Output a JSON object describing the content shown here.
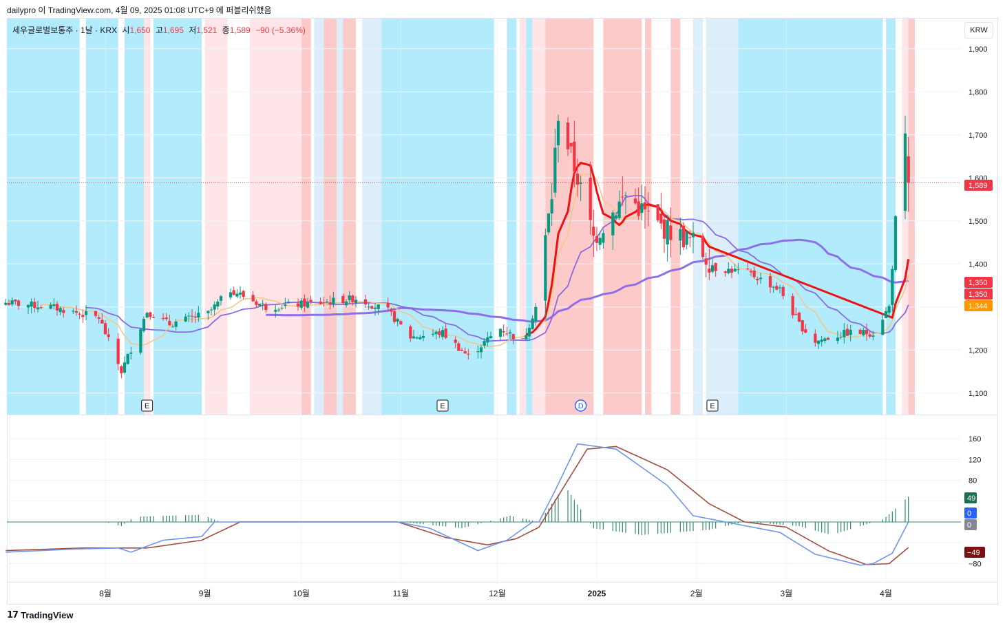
{
  "header": {
    "text": "dailypro 이 TradingView.com, 4월 09, 2025 01:08 UTC+9 에 퍼블리쉬했음"
  },
  "legend": {
    "symbol": "세우글로벌보통주 · 1날 · KRX",
    "open_label": "시",
    "open": "1,650",
    "high_label": "고",
    "high": "1,695",
    "low_label": "저",
    "low": "1,521",
    "close_label": "종",
    "close": "1,589",
    "change": "−90 (−5.36%)"
  },
  "currency_button": "KRW",
  "footer": {
    "brand": "TradingView"
  },
  "colors": {
    "up": "#089981",
    "down": "#f23645",
    "bg_cyan": "#b2ebfc",
    "bg_lightblue": "#dbeefa",
    "bg_red": "#fdcaca",
    "bg_pink": "#ffe5e8",
    "ma_purple_thick": "#8e6fe8",
    "ma_purple_thin": "#8a6ae0",
    "ma_red": "#ee1111",
    "ma_orange": "#f2c88a",
    "macd_line": "#6f95ec",
    "signal_line": "#a14e40",
    "hist": "#2f8a6f"
  },
  "chart_data": [
    {
      "type": "candlestick",
      "title": "세우글로벌보통주 · 1날 · KRX",
      "ylim": [
        1050,
        1970
      ],
      "y_ticks": [
        1100,
        1200,
        1300,
        1400,
        1500,
        1600,
        1700,
        1800,
        1900
      ],
      "y_tick_labels": [
        "1,100",
        "1,200",
        "1,300",
        "1,400",
        "1,500",
        "1,600",
        "1,700",
        "1,800",
        "1,900"
      ],
      "x_labels": [
        "8월",
        "9월",
        "10월",
        "11월",
        "12월",
        "2025",
        "2월",
        "3월",
        "4월"
      ],
      "price_tags": [
        {
          "value": 1589,
          "label": "1,589",
          "color": "#f23645"
        },
        {
          "value": 1350,
          "label": "1,350",
          "color": "#f23645"
        },
        {
          "value": 1350,
          "label": "1,350",
          "color": "#f23645"
        },
        {
          "value": 1344,
          "label": "1,344",
          "color": "#ff9800"
        }
      ],
      "event_markers": [
        {
          "label": "E",
          "x_date": "2024-08-14"
        },
        {
          "label": "E",
          "x_date": "2024-11-14"
        },
        {
          "label": "D",
          "x_date": "2024-12-27"
        },
        {
          "label": "E",
          "x_date": "2025-02-06"
        }
      ],
      "anchor_points": [
        [
          "2024-07-01",
          1310
        ],
        [
          "2024-07-15",
          1300
        ],
        [
          "2024-07-30",
          1275
        ],
        [
          "2024-08-06",
          1150
        ],
        [
          "2024-08-14",
          1290
        ],
        [
          "2024-08-21",
          1260
        ],
        [
          "2024-09-02",
          1285
        ],
        [
          "2024-09-09",
          1340
        ],
        [
          "2024-09-20",
          1300
        ],
        [
          "2024-10-07",
          1310
        ],
        [
          "2024-10-18",
          1320
        ],
        [
          "2024-10-28",
          1290
        ],
        [
          "2024-11-04",
          1230
        ],
        [
          "2024-11-14",
          1240
        ],
        [
          "2024-11-22",
          1185
        ],
        [
          "2024-12-02",
          1250
        ],
        [
          "2024-12-09",
          1220
        ],
        [
          "2024-12-13",
          1300
        ],
        [
          "2024-12-18",
          1560
        ],
        [
          "2024-12-20",
          1750
        ],
        [
          "2024-12-26",
          1600
        ],
        [
          "2024-12-31",
          1460
        ],
        [
          "2025-01-10",
          1560
        ],
        [
          "2025-01-20",
          1490
        ],
        [
          "2025-01-31",
          1450
        ],
        [
          "2025-02-07",
          1390
        ],
        [
          "2025-02-17",
          1380
        ],
        [
          "2025-02-27",
          1340
        ],
        [
          "2025-03-05",
          1260
        ],
        [
          "2025-03-10",
          1220
        ],
        [
          "2025-03-20",
          1240
        ],
        [
          "2025-03-28",
          1240
        ],
        [
          "2025-04-02",
          1300
        ],
        [
          "2025-04-04",
          1490
        ],
        [
          "2025-04-07",
          1680
        ],
        [
          "2025-04-08",
          1589
        ]
      ],
      "last_bar": {
        "date": "2025-04-08",
        "open": 1650,
        "high": 1695,
        "low": 1521,
        "close": 1589
      }
    },
    {
      "type": "macd",
      "ylim": [
        -115,
        205
      ],
      "y_ticks": [
        160,
        120,
        80,
        -80
      ],
      "y_tick_labels": [
        "160",
        "120",
        "80",
        "−80"
      ],
      "value_tags": [
        {
          "value": 49,
          "label": "49",
          "color": "#1e6d55"
        },
        {
          "value": 0,
          "label": "0",
          "color": "#2962ff"
        },
        {
          "value": 0,
          "label": "0",
          "color": "#868993"
        },
        {
          "value": -49,
          "label": "−49",
          "color": "#7a1010"
        }
      ],
      "macd_points": [
        [
          "2024-07-01",
          -58
        ],
        [
          "2024-07-22",
          -52
        ],
        [
          "2024-08-05",
          -50
        ],
        [
          "2024-08-09",
          -58
        ],
        [
          "2024-08-19",
          -35
        ],
        [
          "2024-08-31",
          -28
        ],
        [
          "2024-09-04",
          0
        ],
        [
          "2024-10-31",
          0
        ],
        [
          "2024-11-10",
          -12
        ],
        [
          "2024-11-25",
          -55
        ],
        [
          "2024-12-04",
          -35
        ],
        [
          "2024-12-12",
          0
        ],
        [
          "2024-12-14",
          0
        ],
        [
          "2024-12-19",
          60
        ],
        [
          "2024-12-26",
          150
        ],
        [
          "2025-01-07",
          140
        ],
        [
          "2025-01-23",
          70
        ],
        [
          "2025-01-31",
          12
        ],
        [
          "2025-02-10",
          0
        ],
        [
          "2025-02-27",
          -20
        ],
        [
          "2025-03-10",
          -62
        ],
        [
          "2025-03-24",
          -83
        ],
        [
          "2025-03-28",
          -80
        ],
        [
          "2025-04-03",
          -60
        ],
        [
          "2025-04-08",
          0
        ]
      ],
      "signal_points": [
        [
          "2024-07-01",
          -55
        ],
        [
          "2024-07-25",
          -50
        ],
        [
          "2024-08-14",
          -50
        ],
        [
          "2024-08-31",
          -35
        ],
        [
          "2024-09-12",
          0
        ],
        [
          "2024-10-31",
          0
        ],
        [
          "2024-11-15",
          -30
        ],
        [
          "2024-11-28",
          -44
        ],
        [
          "2024-12-07",
          -32
        ],
        [
          "2024-12-14",
          -10
        ],
        [
          "2024-12-22",
          70
        ],
        [
          "2024-12-29",
          140
        ],
        [
          "2025-01-07",
          145
        ],
        [
          "2025-01-23",
          100
        ],
        [
          "2025-02-05",
          35
        ],
        [
          "2025-02-16",
          0
        ],
        [
          "2025-03-01",
          -10
        ],
        [
          "2025-03-14",
          -55
        ],
        [
          "2025-03-26",
          -82
        ],
        [
          "2025-04-02",
          -80
        ],
        [
          "2025-04-08",
          -49
        ]
      ],
      "hist_points": [
        [
          "2024-07-01",
          0
        ],
        [
          "2024-08-01",
          0
        ],
        [
          "2024-08-06",
          -8
        ],
        [
          "2024-08-10",
          10
        ],
        [
          "2024-08-31",
          14
        ],
        [
          "2024-09-06",
          0
        ],
        [
          "2024-11-01",
          0
        ],
        [
          "2024-11-20",
          -12
        ],
        [
          "2024-12-05",
          12
        ],
        [
          "2024-12-14",
          0
        ],
        [
          "2024-12-22",
          70
        ],
        [
          "2024-12-31",
          -12
        ],
        [
          "2025-01-15",
          -25
        ],
        [
          "2025-02-05",
          -15
        ],
        [
          "2025-02-16",
          0
        ],
        [
          "2025-03-05",
          -8
        ],
        [
          "2025-03-15",
          -25
        ],
        [
          "2025-03-31",
          5
        ],
        [
          "2025-04-03",
          20
        ],
        [
          "2025-04-08",
          49
        ]
      ]
    }
  ]
}
